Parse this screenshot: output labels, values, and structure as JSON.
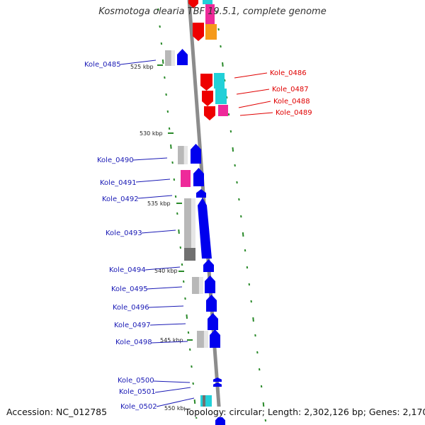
{
  "header": {
    "title": "Kosmotoga olearia TBF 19.5.1, complete genome"
  },
  "footer": {
    "accession": "Accession: NC_012785",
    "topology": "Topology: circular; Length: 2,302,126 bp; Genes: 2,170"
  },
  "colors": {
    "backbone": "#8c8c8c",
    "blue_gene": "#0000ee",
    "red_gene": "#ee0000",
    "cyan_feature": "#22d0d8",
    "orange_feature": "#f59a1a",
    "magenta_feature": "#ee2a9a",
    "gray_feature": "#b8b8b8",
    "dark_gray_feature": "#707070",
    "tick": "#2a8a2a",
    "label_blue": "#1a1ab5",
    "label_red": "#e00000"
  },
  "kbp_ticks": [
    "525 kbp",
    "530 kbp",
    "535 kbp",
    "540 kbp",
    "545 kbp",
    "550 kbp"
  ],
  "genes_left": [
    "Kole_0485",
    "Kole_0490",
    "Kole_0491",
    "Kole_0492",
    "Kole_0493",
    "Kole_0494",
    "Kole_0495",
    "Kole_0496",
    "Kole_0497",
    "Kole_0498",
    "Kole_0500",
    "Kole_0501",
    "Kole_0502"
  ],
  "genes_right": [
    "Kole_0486",
    "Kole_0487",
    "Kole_0488",
    "Kole_0489"
  ]
}
